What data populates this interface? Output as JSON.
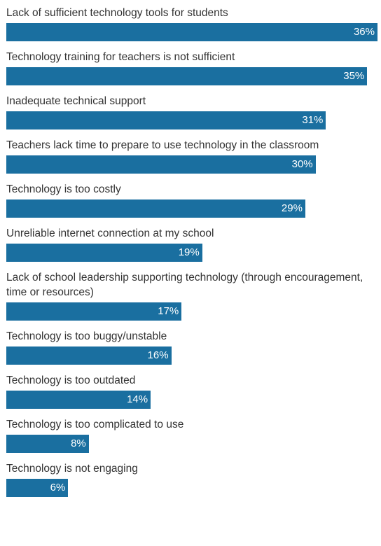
{
  "chart_data": {
    "type": "bar",
    "orientation": "horizontal",
    "unit": "%",
    "bar_color": "#1a6fa0",
    "label_color": "#333333",
    "value_label_color": "#ffffff",
    "xlim": [
      0,
      36
    ],
    "grid": false,
    "legend": "none",
    "categories": [
      "Lack of sufficient technology tools for students",
      "Technology training for teachers is not sufficient",
      "Inadequate technical support",
      "Teachers lack time to prepare to use technology in the classroom",
      "Technology is too costly",
      "Unreliable internet connection at my school",
      "Lack of school leadership supporting technology (through encouragement, time or resources)",
      "Technology is too buggy/unstable",
      "Technology is too outdated",
      "Technology is too complicated to use",
      "Technology is not engaging"
    ],
    "values": [
      36,
      35,
      31,
      30,
      29,
      19,
      17,
      16,
      14,
      8,
      6
    ],
    "value_labels": [
      "36%",
      "35%",
      "31%",
      "30%",
      "29%",
      "19%",
      "17%",
      "16%",
      "14%",
      "8%",
      "6%"
    ]
  }
}
